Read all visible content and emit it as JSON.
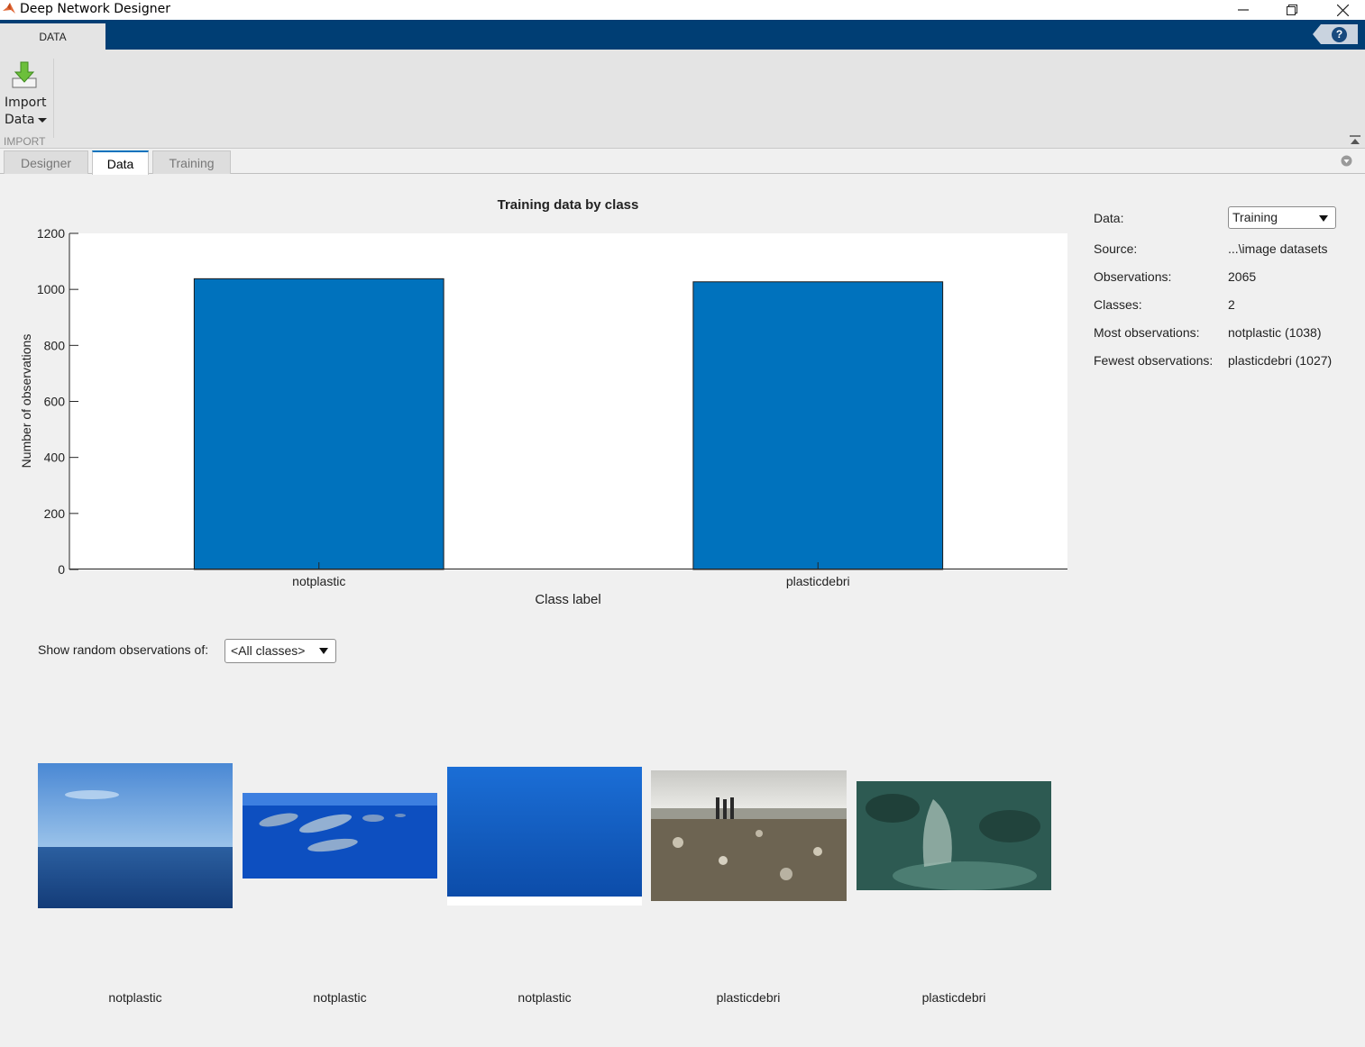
{
  "window": {
    "title": "Deep Network Designer",
    "controls": {
      "minimize": "minimize-icon",
      "restore": "restore-icon",
      "close": "close-icon"
    }
  },
  "ribbon": {
    "tabs": [
      {
        "label": "DATA",
        "active": true
      }
    ],
    "help": "?",
    "import_button": {
      "line1": "Import",
      "line2": "Data",
      "icon": "import-down-arrow-icon"
    },
    "section_label": "IMPORT"
  },
  "doc_tabs": [
    {
      "label": "Designer",
      "active": false
    },
    {
      "label": "Data",
      "active": true
    },
    {
      "label": "Training",
      "active": false
    }
  ],
  "info": {
    "data_label": "Data:",
    "data_value": "Training",
    "source_label": "Source:",
    "source_value": "...\\image datasets",
    "observations_label": "Observations:",
    "observations_value": "2065",
    "classes_label": "Classes:",
    "classes_value": "2",
    "most_label": "Most observations:",
    "most_value": "notplastic (1038)",
    "fewest_label": "Fewest observations:",
    "fewest_value": "plasticdebri (1027)"
  },
  "random": {
    "label": "Show random observations of:",
    "selected": "<All classes>"
  },
  "samples": [
    {
      "label": "notplastic",
      "scene": "open-sea-horizon"
    },
    {
      "label": "notplastic",
      "scene": "dolphins-underwater"
    },
    {
      "label": "notplastic",
      "scene": "deep-blue-water"
    },
    {
      "label": "plasticdebri",
      "scene": "beach-plastic-waste"
    },
    {
      "label": "plasticdebri",
      "scene": "plastic-bag-seafloor"
    }
  ],
  "colors": {
    "bar": "#0072bd",
    "ribbon": "#003e74",
    "background": "#f0f0f0"
  },
  "chart_data": {
    "type": "bar",
    "title": "Training data by class",
    "xlabel": "Class label",
    "ylabel": "Number of observations",
    "categories": [
      "notplastic",
      "plasticdebri"
    ],
    "values": [
      1038,
      1027
    ],
    "ylim": [
      0,
      1200
    ],
    "yticks": [
      0,
      200,
      400,
      600,
      800,
      1000,
      1200
    ],
    "grid": false
  }
}
